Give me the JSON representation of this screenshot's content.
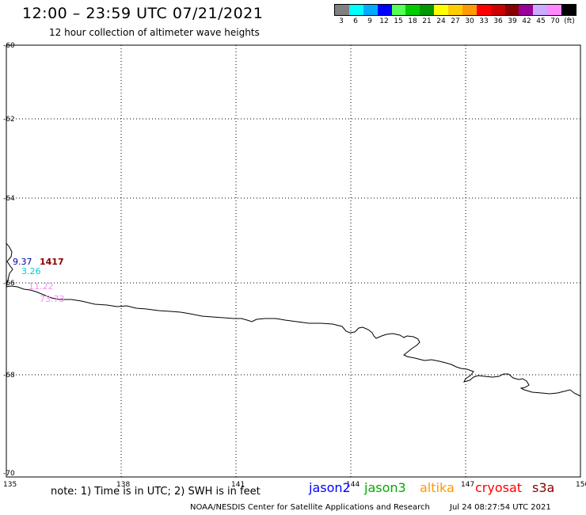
{
  "header": {
    "title": "12:00 – 23:59 UTC 07/21/2021",
    "subtitle": "12 hour collection of altimeter wave heights"
  },
  "legend": {
    "swatches": [
      {
        "color": "#808080",
        "label": "3"
      },
      {
        "color": "#00ffff",
        "label": "6"
      },
      {
        "color": "#00aaff",
        "label": "9"
      },
      {
        "color": "#0000ff",
        "label": "12"
      },
      {
        "color": "#55ff55",
        "label": "15"
      },
      {
        "color": "#00cc00",
        "label": "18"
      },
      {
        "color": "#009900",
        "label": "21"
      },
      {
        "color": "#ffff00",
        "label": "24"
      },
      {
        "color": "#ffcc00",
        "label": "27"
      },
      {
        "color": "#ff9900",
        "label": "30"
      },
      {
        "color": "#ff0000",
        "label": "33"
      },
      {
        "color": "#cc0000",
        "label": "36"
      },
      {
        "color": "#880000",
        "label": "39"
      },
      {
        "color": "#990099",
        "label": "42"
      },
      {
        "color": "#ccaaff",
        "label": "45"
      },
      {
        "color": "#ff88ff",
        "label": "70"
      },
      {
        "color": "#000000",
        "label": ""
      }
    ],
    "unit": "(ft)"
  },
  "map": {
    "lon_ticks": [
      "135",
      "138",
      "141",
      "144",
      "147",
      "150"
    ],
    "lat_ticks": [
      "-60",
      "-62",
      "-64",
      "-66",
      "-68",
      "-70"
    ],
    "observations": [
      {
        "text": "9.37",
        "color": "#0000aa"
      },
      {
        "text": "1417",
        "color": "#880000"
      },
      {
        "text": "3.26",
        "color": "#00cccc"
      },
      {
        "text": "11.22",
        "color": "#ff88ff"
      },
      {
        "text": "73.73",
        "color": "#ff88ff"
      }
    ]
  },
  "footer": {
    "note": "note: 1) Time is in UTC; 2) SWH is in feet",
    "satellites": [
      {
        "name": "jason2",
        "color": "#0000ff"
      },
      {
        "name": "jason3",
        "color": "#00aa00"
      },
      {
        "name": "altika",
        "color": "#ff9900"
      },
      {
        "name": "cryosat",
        "color": "#ff0000"
      },
      {
        "name": "s3a",
        "color": "#880000"
      }
    ],
    "credit": "NOAA/NESDIS Center for Satellite Applications and Research",
    "timestamp": "Jul 24 08:27:54 UTC 2021"
  }
}
